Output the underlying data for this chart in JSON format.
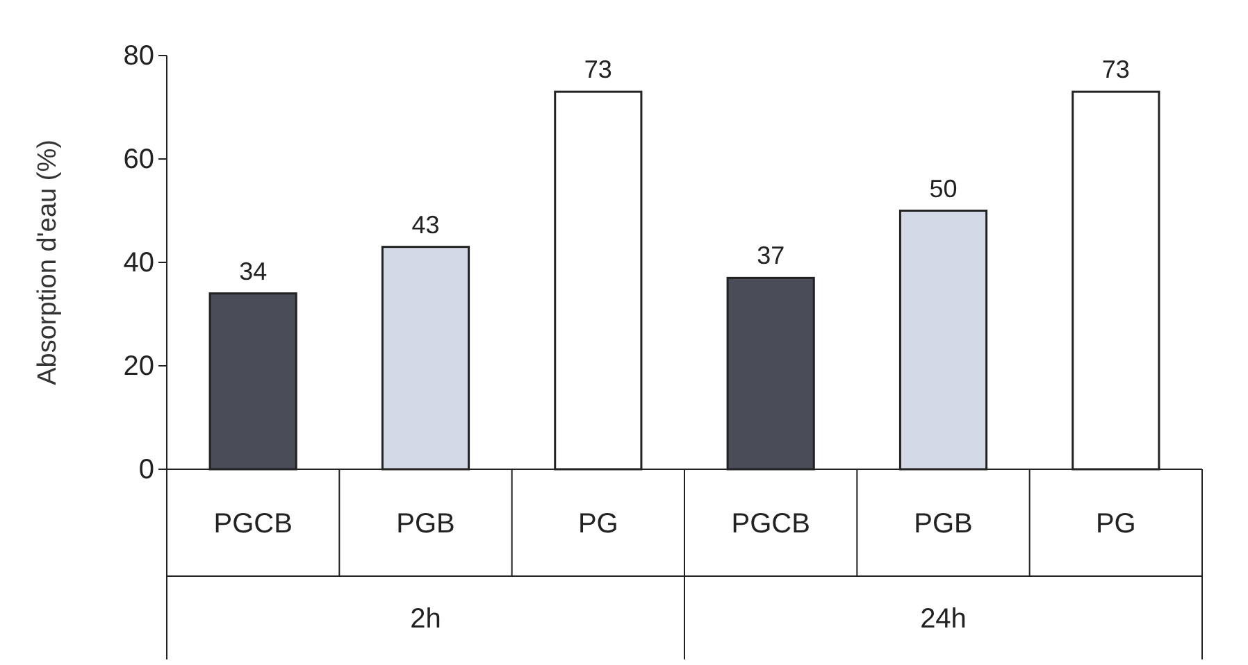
{
  "chart_data": {
    "type": "bar",
    "ylabel": "Absorption d'eau (%)",
    "categories": [
      "2h",
      "24h"
    ],
    "series": [
      {
        "name": "PGCB",
        "color": "#4a4d57",
        "values": [
          34,
          37
        ]
      },
      {
        "name": "PGB",
        "color": "#d3d9e6",
        "values": [
          43,
          50
        ]
      },
      {
        "name": "PG",
        "color": "#ffffff",
        "values": [
          73,
          73
        ]
      }
    ],
    "ylim": [
      0,
      80
    ],
    "yticks": [
      0,
      20,
      40,
      60,
      80
    ],
    "data_labels": true
  }
}
